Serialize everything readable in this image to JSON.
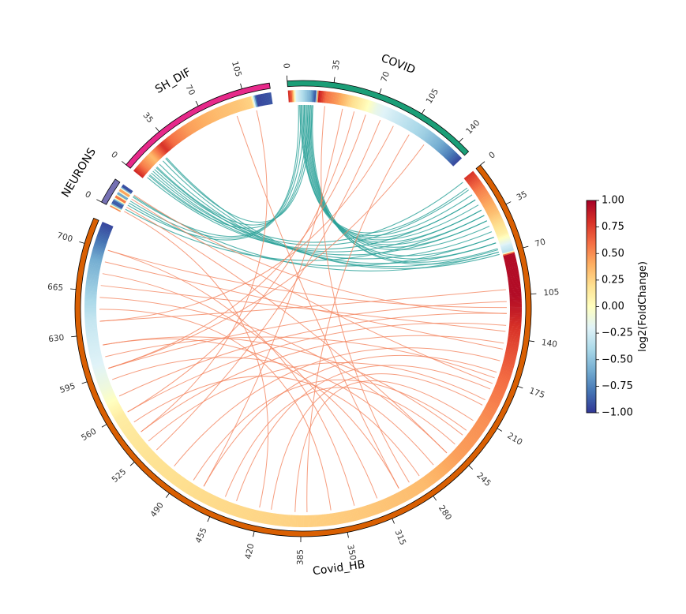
{
  "chart_data": {
    "type": "chord",
    "colorbar": {
      "label": "log2(FoldChange)",
      "min": -1.0,
      "max": 1.0,
      "ticks": [
        "1.00",
        "0.75",
        "0.50",
        "0.25",
        "0.00",
        "−0.25",
        "−0.50",
        "−0.75",
        "−1.00"
      ],
      "colormap": [
        "#313695",
        "#4575b4",
        "#74add1",
        "#abd9e9",
        "#e0f3f8",
        "#ffffbf",
        "#fee090",
        "#fdae61",
        "#f46d43",
        "#d73027",
        "#a50026"
      ]
    },
    "segments": [
      {
        "name": "COVID",
        "length": 150,
        "ring_color": "#1b9e77",
        "ticks": [
          0,
          35,
          70,
          105,
          140
        ],
        "heat": [
          [
            0,
            0.85
          ],
          [
            3,
            0.6
          ],
          [
            6,
            -0.2
          ],
          [
            12,
            -0.4
          ],
          [
            18,
            -0.6
          ],
          [
            22,
            -0.95
          ],
          [
            24,
            0.9
          ],
          [
            30,
            0.6
          ],
          [
            40,
            0.45
          ],
          [
            52,
            0.2
          ],
          [
            62,
            0.05
          ],
          [
            72,
            -0.15
          ],
          [
            85,
            -0.25
          ],
          [
            100,
            -0.35
          ],
          [
            115,
            -0.45
          ],
          [
            130,
            -0.6
          ],
          [
            140,
            -0.75
          ],
          [
            150,
            -0.95
          ]
        ]
      },
      {
        "name": "Covid_HB",
        "length": 720,
        "ring_color": "#d95f02",
        "ticks": [
          0,
          35,
          70,
          105,
          140,
          175,
          210,
          245,
          280,
          315,
          350,
          385,
          420,
          455,
          490,
          525,
          560,
          595,
          630,
          665,
          700
        ],
        "heat": [
          [
            0,
            0.8
          ],
          [
            15,
            0.55
          ],
          [
            35,
            0.35
          ],
          [
            55,
            0.1
          ],
          [
            65,
            -0.25
          ],
          [
            70,
            -0.35
          ],
          [
            72,
            0.95
          ],
          [
            105,
            0.95
          ],
          [
            115,
            0.9
          ],
          [
            130,
            0.8
          ],
          [
            150,
            0.7
          ],
          [
            175,
            0.6
          ],
          [
            210,
            0.5
          ],
          [
            245,
            0.45
          ],
          [
            280,
            0.35
          ],
          [
            330,
            0.3
          ],
          [
            400,
            0.25
          ],
          [
            460,
            0.22
          ],
          [
            520,
            0.18
          ],
          [
            560,
            0.12
          ],
          [
            585,
            -0.1
          ],
          [
            605,
            -0.2
          ],
          [
            640,
            -0.3
          ],
          [
            665,
            -0.45
          ],
          [
            690,
            -0.6
          ],
          [
            705,
            -0.8
          ],
          [
            720,
            -0.95
          ]
        ]
      },
      {
        "name": "NEURONS",
        "length": 20,
        "ring_color": "#7570b3",
        "ticks": [
          0
        ],
        "heat": [
          [
            0,
            0.8
          ],
          [
            3,
            -0.9
          ],
          [
            6,
            -0.85
          ],
          [
            9,
            0.85
          ],
          [
            12,
            -0.9
          ],
          [
            15,
            0.7
          ],
          [
            18,
            -0.95
          ],
          [
            20,
            -0.9
          ]
        ]
      },
      {
        "name": "SH_DIF",
        "length": 126,
        "ring_color": "#e7298a",
        "ticks": [
          0,
          35,
          70,
          105
        ],
        "heat": [
          [
            0,
            0.85
          ],
          [
            8,
            0.55
          ],
          [
            18,
            0.35
          ],
          [
            30,
            0.8
          ],
          [
            38,
            0.6
          ],
          [
            55,
            0.45
          ],
          [
            80,
            0.35
          ],
          [
            100,
            0.3
          ],
          [
            110,
            0.25
          ],
          [
            114,
            -0.95
          ],
          [
            126,
            -0.9
          ]
        ]
      }
    ],
    "link_colors": {
      "neg": "#2aa198",
      "pos": "#f4855f"
    },
    "links": [
      {
        "from": [
          "COVID",
          10
        ],
        "to": [
          "Covid_HB",
          15
        ],
        "sign": "neg"
      },
      {
        "from": [
          "COVID",
          12
        ],
        "to": [
          "Covid_HB",
          25
        ],
        "sign": "neg"
      },
      {
        "from": [
          "COVID",
          14
        ],
        "to": [
          "Covid_HB",
          35
        ],
        "sign": "neg"
      },
      {
        "from": [
          "COVID",
          15
        ],
        "to": [
          "Covid_HB",
          45
        ],
        "sign": "neg"
      },
      {
        "from": [
          "COVID",
          16
        ],
        "to": [
          "Covid_HB",
          55
        ],
        "sign": "neg"
      },
      {
        "from": [
          "COVID",
          17
        ],
        "to": [
          "Covid_HB",
          65
        ],
        "sign": "neg"
      },
      {
        "from": [
          "COVID",
          18
        ],
        "to": [
          "Covid_HB",
          68
        ],
        "sign": "neg"
      },
      {
        "from": [
          "COVID",
          11
        ],
        "to": [
          "Covid_HB",
          8
        ],
        "sign": "neg"
      },
      {
        "from": [
          "COVID",
          13
        ],
        "to": [
          "Covid_HB",
          20
        ],
        "sign": "neg"
      },
      {
        "from": [
          "COVID",
          19
        ],
        "to": [
          "Covid_HB",
          40
        ],
        "sign": "neg"
      },
      {
        "from": [
          "COVID",
          20
        ],
        "to": [
          "Covid_HB",
          60
        ],
        "sign": "neg"
      },
      {
        "from": [
          "COVID",
          9
        ],
        "to": [
          "Covid_HB",
          30
        ],
        "sign": "neg"
      },
      {
        "from": [
          "COVID",
          8
        ],
        "to": [
          "NEURONS",
          16
        ],
        "sign": "neg"
      },
      {
        "from": [
          "COVID",
          10
        ],
        "to": [
          "NEURONS",
          12
        ],
        "sign": "neg"
      },
      {
        "from": [
          "COVID",
          13
        ],
        "to": [
          "NEURONS",
          8
        ],
        "sign": "neg"
      },
      {
        "from": [
          "COVID",
          16
        ],
        "to": [
          "SH_DIF",
          5
        ],
        "sign": "neg"
      },
      {
        "from": [
          "COVID",
          18
        ],
        "to": [
          "SH_DIF",
          15
        ],
        "sign": "neg"
      },
      {
        "from": [
          "COVID",
          20
        ],
        "to": [
          "SH_DIF",
          25
        ],
        "sign": "neg"
      },
      {
        "from": [
          "SH_DIF",
          3
        ],
        "to": [
          "Covid_HB",
          20
        ],
        "sign": "neg"
      },
      {
        "from": [
          "SH_DIF",
          6
        ],
        "to": [
          "Covid_HB",
          30
        ],
        "sign": "neg"
      },
      {
        "from": [
          "SH_DIF",
          10
        ],
        "to": [
          "Covid_HB",
          40
        ],
        "sign": "neg"
      },
      {
        "from": [
          "SH_DIF",
          14
        ],
        "to": [
          "Covid_HB",
          50
        ],
        "sign": "neg"
      },
      {
        "from": [
          "SH_DIF",
          18
        ],
        "to": [
          "Covid_HB",
          60
        ],
        "sign": "neg"
      },
      {
        "from": [
          "SH_DIF",
          22
        ],
        "to": [
          "Covid_HB",
          66
        ],
        "sign": "neg"
      },
      {
        "from": [
          "SH_DIF",
          26
        ],
        "to": [
          "Covid_HB",
          70
        ],
        "sign": "neg"
      },
      {
        "from": [
          "SH_DIF",
          8
        ],
        "to": [
          "Covid_HB",
          10
        ],
        "sign": "neg"
      },
      {
        "from": [
          "SH_DIF",
          12
        ],
        "to": [
          "Covid_HB",
          2
        ],
        "sign": "neg"
      },
      {
        "from": [
          "NEURONS",
          4
        ],
        "to": [
          "Covid_HB",
          35
        ],
        "sign": "neg"
      },
      {
        "from": [
          "NEURONS",
          10
        ],
        "to": [
          "Covid_HB",
          55
        ],
        "sign": "neg"
      },
      {
        "from": [
          "NEURONS",
          17
        ],
        "to": [
          "Covid_HB",
          68
        ],
        "sign": "neg"
      },
      {
        "from": [
          "COVID",
          30
        ],
        "to": [
          "Covid_HB",
          290
        ],
        "sign": "pos"
      },
      {
        "from": [
          "COVID",
          45
        ],
        "to": [
          "Covid_HB",
          470
        ],
        "sign": "pos"
      },
      {
        "from": [
          "COVID",
          55
        ],
        "to": [
          "Covid_HB",
          560
        ],
        "sign": "pos"
      },
      {
        "from": [
          "COVID",
          65
        ],
        "to": [
          "Covid_HB",
          600
        ],
        "sign": "pos"
      },
      {
        "from": [
          "COVID",
          78
        ],
        "to": [
          "Covid_HB",
          520
        ],
        "sign": "pos"
      },
      {
        "from": [
          "COVID",
          90
        ],
        "to": [
          "Covid_HB",
          640
        ],
        "sign": "pos"
      },
      {
        "from": [
          "COVID",
          105
        ],
        "to": [
          "Covid_HB",
          380
        ],
        "sign": "pos"
      },
      {
        "from": [
          "COVID",
          120
        ],
        "to": [
          "Covid_HB",
          600
        ],
        "sign": "pos"
      },
      {
        "from": [
          "SH_DIF",
          112
        ],
        "to": [
          "Covid_HB",
          540
        ],
        "sign": "pos"
      },
      {
        "from": [
          "SH_DIF",
          95
        ],
        "to": [
          "Covid_HB",
          300
        ],
        "sign": "pos"
      },
      {
        "from": [
          "NEURONS",
          2
        ],
        "to": [
          "Covid_HB",
          420
        ],
        "sign": "pos"
      },
      {
        "from": [
          "NEURONS",
          6
        ],
        "to": [
          "Covid_HB",
          250
        ],
        "sign": "pos"
      },
      {
        "from": [
          "NEURONS",
          14
        ],
        "to": [
          "Covid_HB",
          180
        ],
        "sign": "pos"
      },
      {
        "from": [
          "NEURONS",
          18
        ],
        "to": [
          "Covid_HB",
          120
        ],
        "sign": "pos"
      },
      {
        "from": [
          "Covid_HB",
          100
        ],
        "to": [
          "Covid_HB",
          640
        ],
        "sign": "pos"
      },
      {
        "from": [
          "Covid_HB",
          110
        ],
        "to": [
          "Covid_HB",
          600
        ],
        "sign": "pos"
      },
      {
        "from": [
          "Covid_HB",
          120
        ],
        "to": [
          "Covid_HB",
          575
        ],
        "sign": "pos"
      },
      {
        "from": [
          "Covid_HB",
          130
        ],
        "to": [
          "Covid_HB",
          560
        ],
        "sign": "pos"
      },
      {
        "from": [
          "Covid_HB",
          145
        ],
        "to": [
          "Covid_HB",
          540
        ],
        "sign": "pos"
      },
      {
        "from": [
          "Covid_HB",
          160
        ],
        "to": [
          "Covid_HB",
          500
        ],
        "sign": "pos"
      },
      {
        "from": [
          "Covid_HB",
          170
        ],
        "to": [
          "Covid_HB",
          470
        ],
        "sign": "pos"
      },
      {
        "from": [
          "Covid_HB",
          185
        ],
        "to": [
          "Covid_HB",
          440
        ],
        "sign": "pos"
      },
      {
        "from": [
          "Covid_HB",
          200
        ],
        "to": [
          "Covid_HB",
          410
        ],
        "sign": "pos"
      },
      {
        "from": [
          "Covid_HB",
          215
        ],
        "to": [
          "Covid_HB",
          390
        ],
        "sign": "pos"
      },
      {
        "from": [
          "Covid_HB",
          230
        ],
        "to": [
          "Covid_HB",
          620
        ],
        "sign": "pos"
      },
      {
        "from": [
          "Covid_HB",
          250
        ],
        "to": [
          "Covid_HB",
          660
        ],
        "sign": "pos"
      },
      {
        "from": [
          "Covid_HB",
          265
        ],
        "to": [
          "Covid_HB",
          590
        ],
        "sign": "pos"
      },
      {
        "from": [
          "Covid_HB",
          280
        ],
        "to": [
          "Covid_HB",
          550
        ],
        "sign": "pos"
      },
      {
        "from": [
          "Covid_HB",
          300
        ],
        "to": [
          "Covid_HB",
          620
        ],
        "sign": "pos"
      },
      {
        "from": [
          "Covid_HB",
          320
        ],
        "to": [
          "Covid_HB",
          680
        ],
        "sign": "pos"
      },
      {
        "from": [
          "Covid_HB",
          340
        ],
        "to": [
          "Covid_HB",
          700
        ],
        "sign": "pos"
      },
      {
        "from": [
          "Covid_HB",
          360
        ],
        "to": [
          "Covid_HB",
          650
        ],
        "sign": "pos"
      },
      {
        "from": [
          "Covid_HB",
          150
        ],
        "to": [
          "Covid_HB",
          690
        ],
        "sign": "pos"
      },
      {
        "from": [
          "Covid_HB",
          175
        ],
        "to": [
          "Covid_HB",
          610
        ],
        "sign": "pos"
      },
      {
        "from": [
          "Covid_HB",
          195
        ],
        "to": [
          "Covid_HB",
          530
        ],
        "sign": "pos"
      },
      {
        "from": [
          "Covid_HB",
          225
        ],
        "to": [
          "Covid_HB",
          480
        ],
        "sign": "pos"
      },
      {
        "from": [
          "Covid_HB",
          240
        ],
        "to": [
          "Covid_HB",
          450
        ],
        "sign": "pos"
      },
      {
        "from": [
          "Covid_HB",
          135
        ],
        "to": [
          "Covid_HB",
          670
        ],
        "sign": "pos"
      },
      {
        "from": [
          "Covid_HB",
          115
        ],
        "to": [
          "Covid_HB",
          700
        ],
        "sign": "pos"
      }
    ]
  }
}
